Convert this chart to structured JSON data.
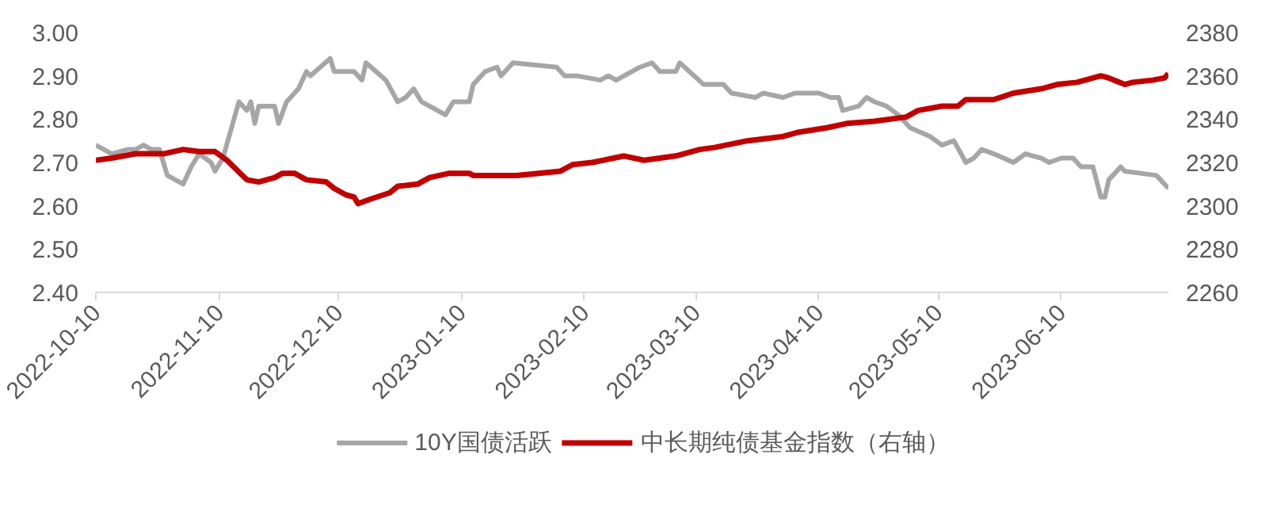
{
  "chart_data": {
    "type": "line",
    "xlim": [
      "2022-10-10",
      "2023-07-07"
    ],
    "xticks": [
      "2022-10-10",
      "2022-11-10",
      "2022-12-10",
      "2023-01-10",
      "2023-02-10",
      "2023-03-10",
      "2023-04-10",
      "2023-05-10",
      "2023-06-10"
    ],
    "ylim": [
      2.4,
      3.0
    ],
    "yticks": [
      {
        "value": 2.4,
        "label": "2.40"
      },
      {
        "value": 2.5,
        "label": "2.50"
      },
      {
        "value": 2.6,
        "label": "2.60"
      },
      {
        "value": 2.7,
        "label": "2.70"
      },
      {
        "value": 2.8,
        "label": "2.80"
      },
      {
        "value": 2.9,
        "label": "2.90"
      },
      {
        "value": 3.0,
        "label": "3.00"
      }
    ],
    "y2lim": [
      2260,
      2380
    ],
    "y2ticks": [
      2260,
      2280,
      2300,
      2320,
      2340,
      2360,
      2380
    ],
    "grid": false,
    "legend": "bottom",
    "marker": "none",
    "line_style": "solid",
    "series": [
      {
        "name": "10Y国债活跃",
        "color": "#a6a6a6",
        "x": [
          "2022-10-10",
          "2022-10-12",
          "2022-10-14",
          "2022-10-18",
          "2022-10-20",
          "2022-10-22",
          "2022-10-24",
          "2022-10-26",
          "2022-10-28",
          "2022-11-01",
          "2022-11-03",
          "2022-11-05",
          "2022-11-08",
          "2022-11-09",
          "2022-11-11",
          "2022-11-15",
          "2022-11-17",
          "2022-11-18",
          "2022-11-19",
          "2022-11-20",
          "2022-11-24",
          "2022-11-25",
          "2022-11-27",
          "2022-11-30",
          "2022-12-02",
          "2022-12-03",
          "2022-12-08",
          "2022-12-09",
          "2022-12-14",
          "2022-12-16",
          "2022-12-17",
          "2022-12-22",
          "2022-12-25",
          "2022-12-27",
          "2022-12-29",
          "2022-12-31",
          "2023-01-06",
          "2023-01-08",
          "2023-01-12",
          "2023-01-13",
          "2023-01-16",
          "2023-01-19",
          "2023-01-20",
          "2023-01-23",
          "2023-02-03",
          "2023-02-05",
          "2023-02-08",
          "2023-02-14",
          "2023-02-16",
          "2023-02-18",
          "2023-02-20",
          "2023-02-24",
          "2023-02-27",
          "2023-03-01",
          "2023-03-05",
          "2023-03-06",
          "2023-03-12",
          "2023-03-14",
          "2023-03-17",
          "2023-03-19",
          "2023-03-25",
          "2023-03-27",
          "2023-04-01",
          "2023-04-04",
          "2023-04-07",
          "2023-04-10",
          "2023-04-13",
          "2023-04-15",
          "2023-04-16",
          "2023-04-20",
          "2023-04-22",
          "2023-04-24",
          "2023-04-27",
          "2023-04-30",
          "2023-05-03",
          "2023-05-08",
          "2023-05-11",
          "2023-05-14",
          "2023-05-17",
          "2023-05-19",
          "2023-05-21",
          "2023-05-24",
          "2023-05-29",
          "2023-06-01",
          "2023-06-05",
          "2023-06-07",
          "2023-06-10",
          "2023-06-13",
          "2023-06-15",
          "2023-06-18",
          "2023-06-20",
          "2023-06-21",
          "2023-06-22",
          "2023-06-25",
          "2023-06-26",
          "2023-07-04",
          "2023-07-07"
        ],
        "values": [
          2.74,
          2.73,
          2.72,
          2.73,
          2.73,
          2.74,
          2.73,
          2.73,
          2.67,
          2.65,
          2.69,
          2.72,
          2.7,
          2.68,
          2.71,
          2.84,
          2.82,
          2.84,
          2.79,
          2.83,
          2.83,
          2.79,
          2.84,
          2.87,
          2.91,
          2.9,
          2.94,
          2.91,
          2.91,
          2.89,
          2.93,
          2.89,
          2.84,
          2.85,
          2.87,
          2.84,
          2.81,
          2.84,
          2.84,
          2.88,
          2.91,
          2.92,
          2.9,
          2.93,
          2.92,
          2.9,
          2.9,
          2.89,
          2.9,
          2.89,
          2.9,
          2.92,
          2.93,
          2.91,
          2.91,
          2.93,
          2.88,
          2.88,
          2.88,
          2.86,
          2.85,
          2.86,
          2.85,
          2.86,
          2.86,
          2.86,
          2.85,
          2.85,
          2.82,
          2.83,
          2.85,
          2.84,
          2.83,
          2.81,
          2.78,
          2.76,
          2.74,
          2.75,
          2.7,
          2.71,
          2.73,
          2.72,
          2.7,
          2.72,
          2.71,
          2.7,
          2.71,
          2.71,
          2.69,
          2.69,
          2.62,
          2.62,
          2.66,
          2.69,
          2.68,
          2.67,
          2.64
        ]
      },
      {
        "name": "中长期纯债基金指数（右轴）",
        "color": "#c00000",
        "axis": "y2",
        "x": [
          "2022-10-10",
          "2022-10-14",
          "2022-10-20",
          "2022-10-27",
          "2022-11-01",
          "2022-11-05",
          "2022-11-09",
          "2022-11-12",
          "2022-11-17",
          "2022-11-20",
          "2022-11-24",
          "2022-11-26",
          "2022-11-29",
          "2022-12-02",
          "2022-12-07",
          "2022-12-09",
          "2022-12-12",
          "2022-12-14",
          "2022-12-15",
          "2022-12-18",
          "2022-12-23",
          "2022-12-25",
          "2022-12-30",
          "2023-01-02",
          "2023-01-07",
          "2023-01-12",
          "2023-01-13",
          "2023-01-16",
          "2023-01-19",
          "2023-01-24",
          "2023-02-04",
          "2023-02-07",
          "2023-02-12",
          "2023-02-20",
          "2023-02-25",
          "2023-03-05",
          "2023-03-11",
          "2023-03-15",
          "2023-03-23",
          "2023-04-01",
          "2023-04-05",
          "2023-04-12",
          "2023-04-17",
          "2023-04-24",
          "2023-05-02",
          "2023-05-05",
          "2023-05-11",
          "2023-05-15",
          "2023-05-17",
          "2023-05-24",
          "2023-05-29",
          "2023-06-05",
          "2023-06-09",
          "2023-06-14",
          "2023-06-18",
          "2023-06-20",
          "2023-06-22",
          "2023-06-26",
          "2023-06-28",
          "2023-07-03",
          "2023-07-06",
          "2023-07-07"
        ],
        "values": [
          2321,
          2322,
          2324,
          2324,
          2326,
          2325,
          2325,
          2321,
          2312,
          2311,
          2313,
          2315,
          2315,
          2312,
          2311,
          2308,
          2305,
          2304,
          2301,
          2303,
          2306,
          2309,
          2310,
          2313,
          2315,
          2315,
          2314,
          2314,
          2314,
          2314,
          2316,
          2319,
          2320,
          2323,
          2321,
          2323,
          2326,
          2327,
          2330,
          2332,
          2334,
          2336,
          2338,
          2339,
          2341,
          2344,
          2346,
          2346,
          2349,
          2349,
          2352,
          2354,
          2356,
          2357,
          2359,
          2360,
          2359,
          2356,
          2357,
          2358,
          2359,
          2361
        ]
      }
    ]
  }
}
